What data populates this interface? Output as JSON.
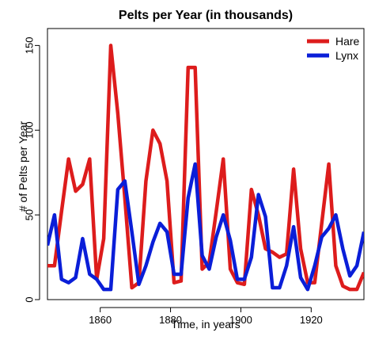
{
  "chart_data": {
    "type": "line",
    "title": "Pelts per Year (in thousands)",
    "xlabel": "Time, in years",
    "ylabel": "# of Pelts per Year",
    "xlim": [
      1845,
      1935
    ],
    "ylim": [
      0,
      160
    ],
    "x_ticks": [
      1860,
      1880,
      1900,
      1920
    ],
    "y_ticks": [
      0,
      50,
      100,
      150
    ],
    "grid": false,
    "legend_position": "top-right",
    "x": [
      1845,
      1847,
      1849,
      1851,
      1853,
      1855,
      1857,
      1859,
      1861,
      1863,
      1865,
      1867,
      1869,
      1871,
      1873,
      1875,
      1877,
      1879,
      1881,
      1883,
      1885,
      1887,
      1889,
      1891,
      1893,
      1895,
      1897,
      1899,
      1901,
      1903,
      1905,
      1907,
      1909,
      1911,
      1913,
      1915,
      1917,
      1919,
      1921,
      1923,
      1925,
      1927,
      1929,
      1931,
      1933,
      1935
    ],
    "series": [
      {
        "name": "Hare",
        "color": "#dd1c1c",
        "values": [
          20,
          20,
          52,
          83,
          64,
          68,
          83,
          12,
          36,
          150,
          110,
          60,
          7,
          10,
          70,
          100,
          92,
          70,
          10,
          11,
          137,
          137,
          18,
          22,
          52,
          83,
          18,
          10,
          9,
          65,
          50,
          30,
          28,
          25,
          27,
          77,
          30,
          10,
          10,
          45,
          80,
          20,
          8,
          6,
          6,
          16
        ]
      },
      {
        "name": "Lynx",
        "color": "#0a1ed8",
        "values": [
          32,
          50,
          12,
          10,
          13,
          36,
          15,
          12,
          6,
          6,
          65,
          70,
          40,
          9,
          20,
          34,
          45,
          40,
          15,
          15,
          60,
          80,
          26,
          18,
          37,
          50,
          35,
          12,
          12,
          25,
          62,
          49,
          7,
          7,
          20,
          43,
          13,
          6,
          20,
          37,
          42,
          50,
          30,
          14,
          20,
          40
        ]
      }
    ]
  },
  "chart_data_tail": {
    "hare_last": [
      1936,
      12
    ],
    "lynx_last": [
      1936,
      48
    ]
  }
}
